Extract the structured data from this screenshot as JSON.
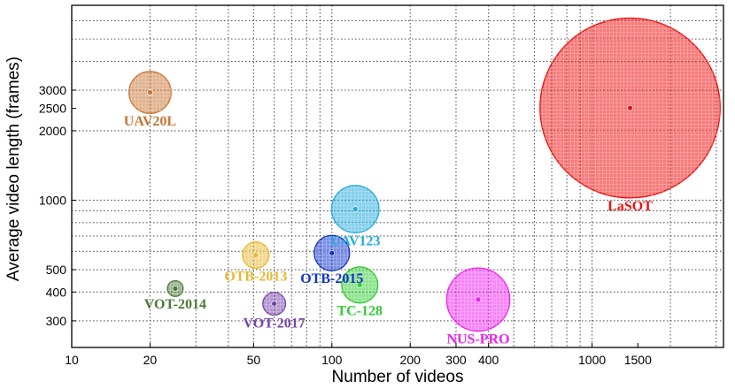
{
  "chart_data": {
    "type": "scatter",
    "title": "",
    "xlabel": "Number of videos",
    "ylabel": "Average video length (frames)",
    "x_scale": "log",
    "y_scale": "log",
    "xlim": [
      10,
      3200
    ],
    "ylim": [
      230,
      7000
    ],
    "xticks": [
      10,
      20,
      50,
      100,
      200,
      300,
      400,
      1000,
      1500
    ],
    "xtick_labels": [
      "10",
      "20",
      "50",
      "100",
      "200",
      "300",
      "400",
      "1000",
      "1500"
    ],
    "yticks": [
      300,
      400,
      500,
      1000,
      2000,
      2500,
      3000
    ],
    "ytick_labels": [
      "300",
      "400",
      "500",
      "1000",
      "2000",
      "2500",
      "3000"
    ],
    "grid": true,
    "bubble_size_encodes": "total frames",
    "points": [
      {
        "name": "UAV20L",
        "x": 20,
        "y": 2934,
        "size": 1.3,
        "color": "#c87533",
        "label_pos": "below"
      },
      {
        "name": "LaSOT",
        "x": 1400,
        "y": 2512,
        "size": 23.9,
        "color": "#ee1111",
        "label_pos": "below"
      },
      {
        "name": "UAV123",
        "x": 123,
        "y": 915,
        "size": 1.65,
        "color": "#22aadd",
        "label_pos": "below"
      },
      {
        "name": "OTB-2015",
        "x": 100,
        "y": 590,
        "size": 0.92,
        "color": "#1133cc",
        "label_pos": "below"
      },
      {
        "name": "OTB-2013",
        "x": 51,
        "y": 578,
        "size": 0.51,
        "color": "#e8b830",
        "label_pos": "below"
      },
      {
        "name": "TC-128",
        "x": 128,
        "y": 429,
        "size": 0.96,
        "color": "#33cc33",
        "label_pos": "below"
      },
      {
        "name": "VOT-2014",
        "x": 25,
        "y": 414,
        "size": 0.18,
        "color": "#4a7a3a",
        "label_pos": "below"
      },
      {
        "name": "VOT-2017",
        "x": 60,
        "y": 356,
        "size": 0.38,
        "color": "#7744aa",
        "label_pos": "below"
      },
      {
        "name": "NUS-PRO",
        "x": 365,
        "y": 371,
        "size": 2.94,
        "color": "#ee22ee",
        "label_pos": "below"
      }
    ]
  }
}
